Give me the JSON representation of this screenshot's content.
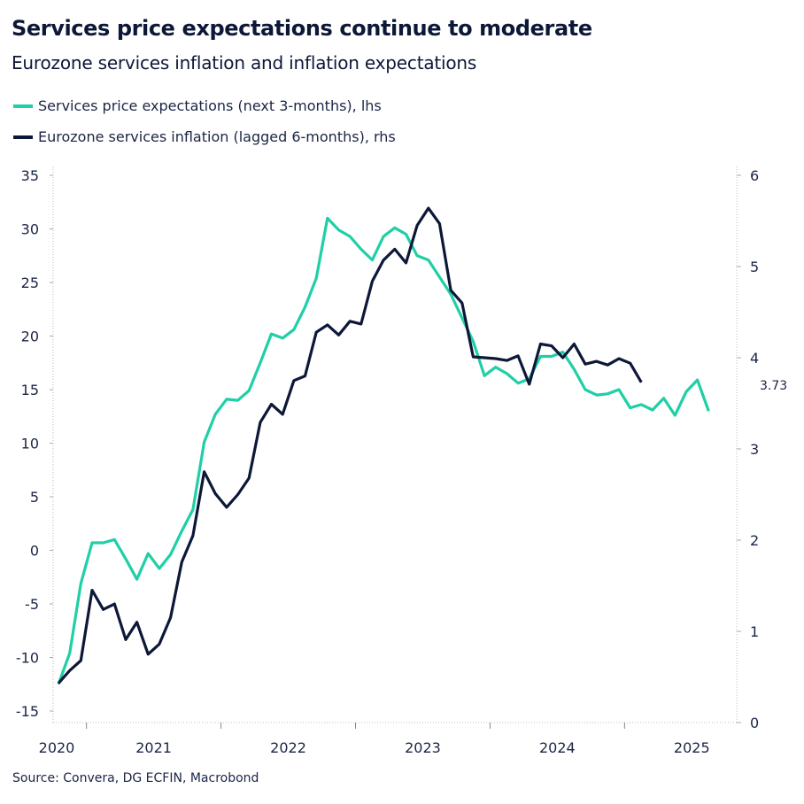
{
  "title": "Services price expectations continue to moderate",
  "subtitle": "Eurozone services inflation and inflation expectations",
  "source": "Source: Convera, DG ECFIN, Macrobond",
  "chart_data": {
    "type": "line",
    "x_start": "2020-10",
    "frequency": "monthly",
    "x_tick_labels": [
      "2020",
      "2021",
      "2022",
      "2023",
      "2024",
      "2025"
    ],
    "y_left": {
      "ticks": [
        -15,
        -10,
        -5,
        0,
        5,
        10,
        15,
        20,
        25,
        30,
        35
      ],
      "ylim": [
        -15,
        35
      ]
    },
    "y_right": {
      "ticks": [
        0,
        1,
        2,
        3,
        4,
        5,
        6
      ],
      "ylim": [
        0,
        6
      ]
    },
    "grid": false,
    "legend_placement": "top-left",
    "series": [
      {
        "name": "Services price expectations (next 3-months), lhs",
        "axis": "left",
        "color": "#1fcfa6",
        "values": [
          -12.5,
          -9.6,
          -3.1,
          0.7,
          0.7,
          1.0,
          -0.8,
          -2.7,
          -0.3,
          -1.7,
          -0.4,
          1.8,
          3.8,
          10.1,
          12.7,
          14.1,
          14.0,
          14.9,
          17.5,
          20.2,
          19.8,
          20.6,
          22.7,
          25.4,
          31.0,
          29.9,
          29.3,
          28.1,
          27.1,
          29.3,
          30.1,
          29.5,
          27.5,
          27.1,
          25.5,
          23.9,
          21.7,
          19.5,
          16.3,
          17.1,
          16.5,
          15.6,
          16.0,
          18.1,
          18.1,
          18.5,
          16.9,
          15.0,
          14.5,
          14.6,
          15.0,
          13.3,
          13.6,
          13.1,
          14.2,
          12.6,
          14.8,
          15.9,
          13.0
        ]
      },
      {
        "name": "Eurozone services inflation (lagged 6-months), rhs",
        "axis": "right",
        "color": "#0d1838",
        "values": [
          0.43,
          0.57,
          0.68,
          1.45,
          1.24,
          1.3,
          0.91,
          1.1,
          0.75,
          0.86,
          1.15,
          1.76,
          2.05,
          2.75,
          2.51,
          2.36,
          2.5,
          2.68,
          3.29,
          3.49,
          3.38,
          3.75,
          3.8,
          4.28,
          4.36,
          4.25,
          4.4,
          4.37,
          4.84,
          5.07,
          5.19,
          5.04,
          5.45,
          5.64,
          5.47,
          4.74,
          4.6,
          4.01,
          4.0,
          3.99,
          3.97,
          4.02,
          3.71,
          4.15,
          4.13,
          4.0,
          4.15,
          3.93,
          3.96,
          3.92,
          3.99,
          3.94,
          3.73
        ]
      }
    ],
    "annotations": [
      {
        "text": "3.73",
        "series": 1
      }
    ]
  }
}
